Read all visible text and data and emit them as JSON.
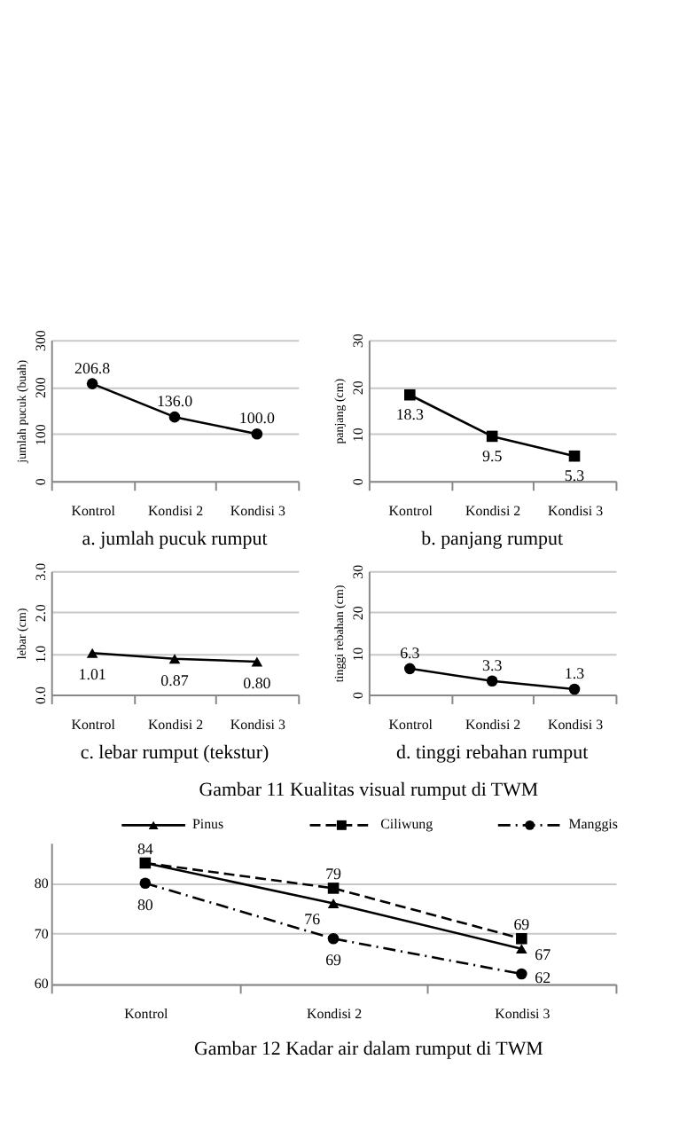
{
  "chart_data": [
    {
      "type": "line",
      "title": "a.  jumlah pucuk rumput",
      "ylabel": "jumlah pucuk (buah)",
      "categories": [
        "Kontrol",
        "Kondisi 2",
        "Kondisi 3"
      ],
      "values": [
        206.8,
        136.0,
        100.0
      ],
      "value_labels": [
        "206.8",
        "136.0",
        "100.0"
      ],
      "color": "#000000",
      "marker": "circle",
      "line_style": "solid",
      "ylim": [
        0,
        300
      ],
      "yticks": [
        0,
        100,
        200,
        300
      ],
      "grid": "y"
    },
    {
      "type": "line",
      "title": "b. panjang rumput",
      "ylabel": "panjang (cm)",
      "categories": [
        "Kontrol",
        "Kondisi 2",
        "Kondisi 3"
      ],
      "values": [
        18.3,
        9.5,
        5.3
      ],
      "value_labels": [
        "18.3",
        "9.5",
        "5.3"
      ],
      "color": "#000000",
      "marker": "square",
      "line_style": "solid",
      "ylim": [
        0,
        30
      ],
      "yticks": [
        0,
        10,
        20,
        30
      ],
      "grid": "y"
    },
    {
      "type": "line",
      "title": "c.  lebar rumput (tekstur)",
      "ylabel": "lebar (cm)",
      "categories": [
        "Kontrol",
        "Kondisi 2",
        "Kondisi 3"
      ],
      "values": [
        1.01,
        0.87,
        0.8
      ],
      "value_labels": [
        "1.01",
        "0.87",
        "0.80"
      ],
      "color": "#000000",
      "marker": "triangle",
      "line_style": "solid",
      "ylim": [
        0,
        3
      ],
      "yticks": [
        {
          "value": 0,
          "label": "0.0"
        },
        {
          "value": 1,
          "label": "1.0"
        },
        {
          "value": 2,
          "label": "2.0"
        },
        {
          "value": 3,
          "label": "3.0"
        }
      ],
      "grid": "y",
      "annotations": [
        "Gambar 11    Kualitas visual rumput di TWM"
      ]
    },
    {
      "type": "line",
      "title": "d. tinggi rebahan rumput",
      "ylabel": "tinggi rebahan (cm)",
      "categories": [
        "Kontrol",
        "Kondisi 2",
        "Kondisi 3"
      ],
      "values": [
        6.3,
        3.3,
        1.3
      ],
      "value_labels": [
        "6.3",
        "3.3",
        "1.3"
      ],
      "color": "#000000",
      "marker": "circle",
      "line_style": "solid",
      "ylim": [
        0,
        30
      ],
      "yticks": [
        0,
        10,
        20,
        30
      ],
      "grid": "y"
    },
    {
      "type": "line",
      "categories": [
        "Kontrol",
        "Kondisi 2",
        "Kondisi 3"
      ],
      "ylim": [
        60,
        88
      ],
      "yticks": [
        60,
        70,
        80
      ],
      "grid": "y",
      "legend": "top",
      "annotations": [
        "Gambar 12    Kadar air dalam rumput di TWM"
      ],
      "series": [
        {
          "name": "Pinus",
          "color": "#000000",
          "marker": "triangle",
          "line_style": "solid",
          "values": [
            84,
            76,
            67
          ],
          "value_labels": [
            null,
            "76",
            "67"
          ]
        },
        {
          "name": "Ciliwung",
          "color": "#000000",
          "marker": "square",
          "line_style": "dashed",
          "values": [
            84,
            79,
            69
          ],
          "value_labels": [
            "84",
            "79",
            "69"
          ]
        },
        {
          "name": "Manggis",
          "color": "#000000",
          "marker": "circle",
          "line_style": "dotted",
          "values": [
            80,
            69,
            62
          ],
          "value_labels": [
            "80",
            "69",
            "62"
          ]
        }
      ]
    }
  ]
}
